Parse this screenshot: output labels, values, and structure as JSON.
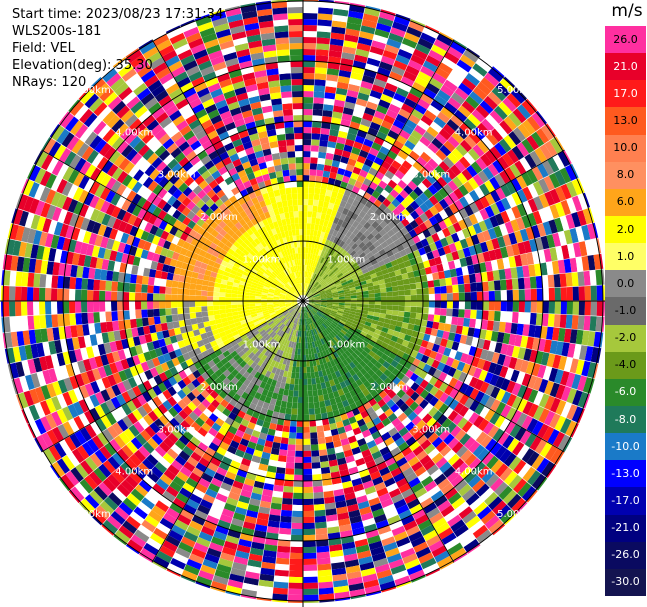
{
  "header": {
    "start_time": "Start time: 2023/08/23 17:31:34",
    "instrument": "WLS200s-181",
    "field": "Field: VEL",
    "elevation": "Elevation(deg): 35.30",
    "nrays": "NRays: 120"
  },
  "colorbar": {
    "unit": "m/s",
    "levels": [
      {
        "label": "26.0",
        "color": "#ff2fa0"
      },
      {
        "label": "21.0",
        "color": "#e8002a"
      },
      {
        "label": "17.0",
        "color": "#ff1a1a"
      },
      {
        "label": "13.0",
        "color": "#ff5a1f"
      },
      {
        "label": "10.0",
        "color": "#ff8050"
      },
      {
        "label": "8.0",
        "color": "#ff9060"
      },
      {
        "label": "6.0",
        "color": "#ffa51a"
      },
      {
        "label": "2.0",
        "color": "#ffff00"
      },
      {
        "label": "1.0",
        "color": "#ffff66"
      },
      {
        "label": "0.0",
        "color": "#8a8a8a"
      },
      {
        "label": "-1.0",
        "color": "#6a6a6a"
      },
      {
        "label": "-2.0",
        "color": "#a6c83c"
      },
      {
        "label": "-4.0",
        "color": "#6b9a1a"
      },
      {
        "label": "-6.0",
        "color": "#2a8a2a"
      },
      {
        "label": "-8.0",
        "color": "#1f7a5a"
      },
      {
        "label": "-10.0",
        "color": "#1a7ac8"
      },
      {
        "label": "-13.0",
        "color": "#0000ff"
      },
      {
        "label": "-17.0",
        "color": "#0000b0"
      },
      {
        "label": "-21.0",
        "color": "#000080"
      },
      {
        "label": "-26.0",
        "color": "#0a0a60"
      },
      {
        "label": "-30.0",
        "color": "#141450"
      }
    ]
  },
  "range_rings": {
    "labels": [
      "1.00km",
      "2.00km",
      "3.00km",
      "4.00km",
      "5.00km"
    ]
  }
}
